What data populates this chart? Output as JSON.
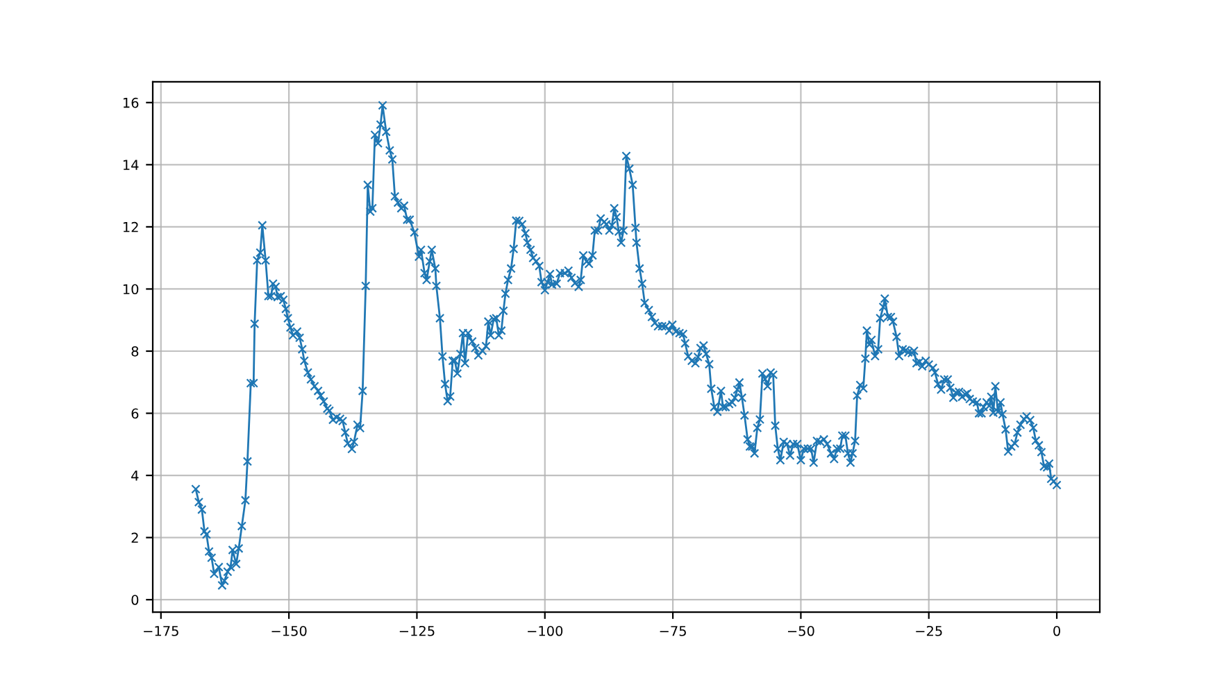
{
  "chart_data": {
    "type": "line",
    "marker": "cross",
    "grid": true,
    "xlim": [
      -176.6,
      8.4
    ],
    "ylim": [
      -0.4,
      16.67
    ],
    "xticks": [
      {
        "value": -175,
        "label": "−175"
      },
      {
        "value": -150,
        "label": "−150"
      },
      {
        "value": -125,
        "label": "−125"
      },
      {
        "value": -100,
        "label": "−100"
      },
      {
        "value": -75,
        "label": "−75"
      },
      {
        "value": -50,
        "label": "−50"
      },
      {
        "value": -25,
        "label": "−25"
      },
      0
    ],
    "yticks": [
      0,
      2,
      4,
      6,
      8,
      10,
      12,
      14,
      16
    ],
    "series": [
      {
        "color": "#1f77b4",
        "x": [
          -168.2,
          -167.6,
          -167.0,
          -166.5,
          -166.1,
          -165.6,
          -165.1,
          -164.6,
          -163.7,
          -163.05,
          -162.6,
          -161.97,
          -161.4,
          -161.0,
          -160.3,
          -159.8,
          -159.2,
          -158.5,
          -158.1,
          -157.45,
          -156.9,
          -156.7,
          -156.2,
          -155.6,
          -155.2,
          -154.55,
          -154.0,
          -153.5,
          -153.1,
          -152.6,
          -152.2,
          -151.6,
          -151.1,
          -150.6,
          -150.2,
          -149.7,
          -149.2,
          -148.4,
          -147.9,
          -147.4,
          -147.0,
          -146.3,
          -145.7,
          -145.0,
          -144.3,
          -143.8,
          -143.2,
          -142.5,
          -142.1,
          -141.4,
          -140.7,
          -140.0,
          -139.5,
          -139.0,
          -138.5,
          -137.7,
          -137.3,
          -136.6,
          -136.1,
          -135.6,
          -135.0,
          -134.6,
          -134.1,
          -133.7,
          -133.2,
          -132.6,
          -132.1,
          -131.7,
          -131.0,
          -130.3,
          -129.8,
          -129.3,
          -128.7,
          -128.05,
          -127.5,
          -126.9,
          -126.4,
          -125.5,
          -124.6,
          -124.2,
          -123.5,
          -123.1,
          -122.5,
          -122.1,
          -121.4,
          -121.2,
          -120.5,
          -120.0,
          -119.5,
          -119.0,
          -118.5,
          -118.0,
          -117.6,
          -117.1,
          -116.5,
          -116.0,
          -115.6,
          -115.0,
          -114.2,
          -113.6,
          -113.0,
          -112.2,
          -111.5,
          -111.05,
          -110.6,
          -110.0,
          -109.5,
          -109.0,
          -108.5,
          -108.1,
          -107.7,
          -107.2,
          -106.6,
          -106.1,
          -105.6,
          -105.0,
          -104.45,
          -103.8,
          -103.4,
          -102.8,
          -102.3,
          -101.7,
          -101.1,
          -100.65,
          -100.0,
          -99.5,
          -99.0,
          -98.6,
          -97.7,
          -97.05,
          -96.1,
          -95.4,
          -94.8,
          -94.1,
          -93.4,
          -93.0,
          -92.5,
          -91.8,
          -91.4,
          -90.7,
          -90.25,
          -89.6,
          -89.1,
          -88.4,
          -88.0,
          -87.4,
          -86.9,
          -86.45,
          -86.0,
          -85.55,
          -85.1,
          -84.65,
          -84.1,
          -83.5,
          -82.85,
          -82.3,
          -82.1,
          -81.5,
          -81.0,
          -80.5,
          -79.7,
          -79.1,
          -78.5,
          -77.9,
          -77.1,
          -76.4,
          -75.7,
          -75.1,
          -74.4,
          -73.7,
          -73.0,
          -72.6,
          -72.0,
          -71.3,
          -70.6,
          -70.1,
          -69.6,
          -69.0,
          -68.5,
          -67.9,
          -67.5,
          -66.9,
          -66.3,
          -65.6,
          -65.2,
          -64.7,
          -64.0,
          -63.4,
          -62.9,
          -62.4,
          -62.0,
          -61.5,
          -61.0,
          -60.4,
          -59.95,
          -59.5,
          -59.05,
          -58.5,
          -58.0,
          -57.5,
          -57.0,
          -56.5,
          -55.9,
          -55.4,
          -55.0,
          -54.5,
          -54.0,
          -53.35,
          -52.7,
          -52.1,
          -51.5,
          -50.7,
          -50.0,
          -49.4,
          -48.65,
          -48.0,
          -47.5,
          -46.85,
          -46.2,
          -45.5,
          -44.85,
          -44.1,
          -43.5,
          -42.95,
          -42.3,
          -41.9,
          -41.3,
          -40.8,
          -40.3,
          -39.9,
          -39.4,
          -39.0,
          -38.4,
          -37.8,
          -37.4,
          -37.1,
          -36.6,
          -36.2,
          -35.5,
          -34.9,
          -34.5,
          -33.9,
          -33.6,
          -33.0,
          -32.4,
          -32.0,
          -31.3,
          -30.8,
          -30.1,
          -29.5,
          -29.0,
          -28.3,
          -27.9,
          -27.4,
          -26.8,
          -26.3,
          -25.6,
          -25.0,
          -24.2,
          -23.8,
          -23.2,
          -22.6,
          -22.0,
          -21.3,
          -20.8,
          -20.2,
          -19.7,
          -19.1,
          -18.5,
          -17.9,
          -17.5,
          -17.0,
          -16.4,
          -15.6,
          -15.2,
          -14.7,
          -14.3,
          -13.7,
          -13.2,
          -12.8,
          -12.4,
          -12.0,
          -11.5,
          -11.0,
          -10.6,
          -10.0,
          -9.5,
          -8.9,
          -8.2,
          -7.7,
          -7.1,
          -6.4,
          -5.9,
          -5.2,
          -4.6,
          -4.1,
          -3.5,
          -3.0,
          -2.5,
          -1.9,
          -1.5,
          -1.1,
          -0.6,
          0.0
        ],
        "values": [
          3.56,
          3.14,
          2.9,
          2.2,
          2.1,
          1.55,
          1.35,
          0.83,
          1.05,
          0.46,
          0.61,
          0.9,
          1.05,
          1.6,
          1.15,
          1.65,
          2.37,
          3.2,
          4.45,
          6.97,
          6.97,
          8.88,
          10.92,
          11.17,
          12.05,
          10.92,
          9.77,
          9.77,
          10.17,
          10.07,
          9.74,
          9.77,
          9.65,
          9.36,
          9.06,
          8.76,
          8.51,
          8.63,
          8.43,
          8.06,
          7.69,
          7.31,
          7.09,
          6.87,
          6.72,
          6.57,
          6.38,
          6.15,
          6.08,
          5.79,
          5.87,
          5.82,
          5.75,
          5.38,
          5.03,
          4.85,
          5.08,
          5.63,
          5.52,
          6.72,
          10.1,
          13.35,
          12.49,
          12.6,
          14.96,
          14.69,
          15.29,
          15.91,
          15.06,
          14.46,
          14.17,
          12.98,
          12.78,
          12.6,
          12.68,
          12.23,
          12.23,
          11.82,
          11.04,
          11.26,
          10.51,
          10.29,
          10.89,
          11.26,
          10.66,
          10.1,
          9.06,
          7.83,
          6.94,
          6.39,
          6.54,
          7.69,
          7.69,
          7.28,
          7.91,
          8.58,
          7.61,
          8.58,
          8.31,
          8.1,
          7.86,
          8.01,
          8.16,
          8.95,
          8.51,
          9.03,
          9.06,
          8.51,
          8.66,
          9.3,
          9.85,
          10.29,
          10.66,
          11.29,
          12.2,
          12.19,
          12.08,
          11.79,
          11.49,
          11.26,
          11.0,
          10.89,
          10.74,
          10.22,
          9.96,
          10.22,
          10.48,
          10.14,
          10.17,
          10.51,
          10.51,
          10.59,
          10.36,
          10.19,
          10.07,
          10.29,
          11.08,
          10.89,
          10.81,
          11.08,
          11.88,
          11.88,
          12.27,
          12.16,
          12.08,
          11.88,
          12.05,
          12.6,
          12.31,
          11.85,
          11.49,
          11.88,
          14.28,
          13.87,
          13.35,
          11.97,
          11.49,
          10.66,
          10.17,
          9.55,
          9.32,
          9.1,
          8.91,
          8.8,
          8.8,
          8.8,
          8.66,
          8.85,
          8.63,
          8.58,
          8.55,
          8.25,
          7.83,
          7.69,
          7.61,
          7.81,
          8.1,
          8.18,
          7.91,
          7.58,
          6.79,
          6.2,
          6.05,
          6.72,
          6.2,
          6.2,
          6.3,
          6.35,
          6.5,
          6.76,
          6.99,
          6.5,
          5.93,
          5.16,
          4.93,
          4.93,
          4.71,
          5.53,
          5.8,
          7.28,
          7.1,
          6.87,
          7.31,
          7.24,
          5.6,
          4.86,
          4.49,
          5.08,
          5.01,
          4.64,
          5.01,
          5.01,
          4.49,
          4.86,
          4.86,
          4.86,
          4.41,
          5.11,
          5.08,
          5.16,
          5.01,
          4.71,
          4.53,
          4.86,
          4.86,
          5.28,
          5.28,
          4.71,
          4.41,
          4.71,
          5.11,
          6.57,
          6.91,
          6.8,
          7.76,
          8.66,
          8.21,
          8.36,
          7.84,
          8.06,
          9.06,
          9.42,
          9.69,
          9.1,
          9.1,
          8.95,
          8.46,
          7.84,
          8.06,
          8.03,
          7.96,
          7.94,
          8.01,
          7.61,
          7.66,
          7.51,
          7.69,
          7.57,
          7.46,
          7.31,
          6.94,
          6.76,
          7.09,
          7.09,
          6.82,
          6.5,
          6.67,
          6.69,
          6.53,
          6.61,
          6.64,
          6.46,
          6.38,
          6.35,
          6.0,
          6.0,
          6.2,
          6.35,
          6.24,
          6.53,
          6.02,
          6.87,
          6.05,
          6.35,
          5.97,
          5.48,
          4.77,
          4.93,
          5.03,
          5.38,
          5.63,
          5.81,
          5.9,
          5.78,
          5.53,
          5.12,
          4.97,
          4.75,
          4.29,
          4.26,
          4.38,
          3.89,
          3.81,
          3.69
        ]
      }
    ]
  }
}
